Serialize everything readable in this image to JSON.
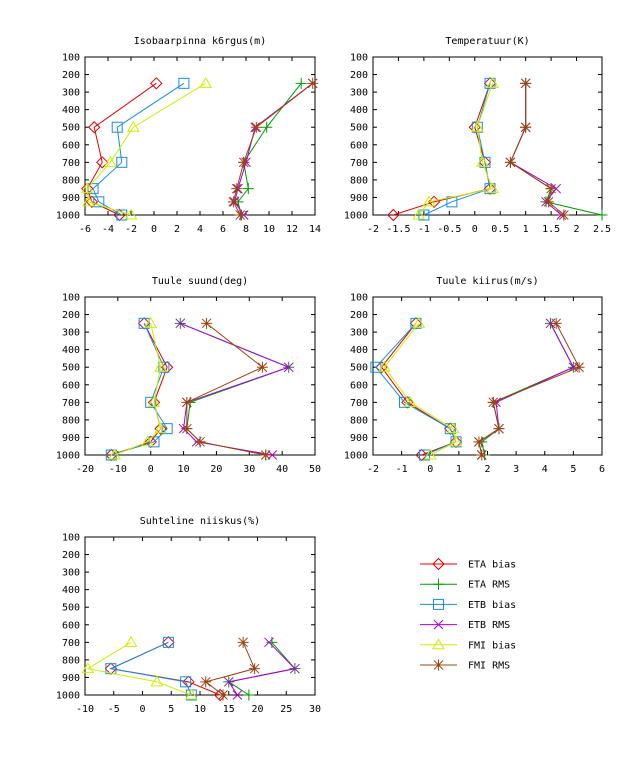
{
  "legend": {
    "placement": "bottom-right",
    "entries": [
      {
        "name": "ETA bias",
        "color": "#dd0000",
        "marker": "diamond"
      },
      {
        "name": "ETA RMS",
        "color": "#009900",
        "marker": "plus"
      },
      {
        "name": "ETB bias",
        "color": "#1a8ce0",
        "marker": "square"
      },
      {
        "name": "ETB RMS",
        "color": "#aa00dd",
        "marker": "cross"
      },
      {
        "name": "FMI bias",
        "color": "#ccee00",
        "marker": "triangle"
      },
      {
        "name": "FMI RMS",
        "color": "#994411",
        "marker": "star"
      }
    ]
  },
  "chart_data": [
    {
      "type": "line",
      "title": "Isobaarpinna k6rgus(m)",
      "y_reversed": true,
      "ylim": [
        100,
        1000
      ],
      "yticks": [
        100,
        200,
        300,
        400,
        500,
        600,
        700,
        800,
        900,
        1000
      ],
      "xlim": [
        -6,
        14
      ],
      "xticks": [
        -6,
        -4,
        -2,
        0,
        2,
        4,
        6,
        8,
        10,
        12,
        14
      ],
      "levels": [
        250,
        500,
        700,
        850,
        925,
        1000
      ],
      "series": [
        {
          "name": "ETA bias",
          "values": [
            0.2,
            -5.2,
            -4.5,
            -5.8,
            -5.4,
            -3.0
          ]
        },
        {
          "name": "ETA RMS",
          "values": [
            12.8,
            9.8,
            7.8,
            8.2,
            7.3,
            7.6
          ]
        },
        {
          "name": "ETB bias",
          "values": [
            2.6,
            -3.2,
            -2.8,
            -5.3,
            -4.8,
            -2.8
          ]
        },
        {
          "name": "ETB RMS",
          "values": [
            13.8,
            8.8,
            8.0,
            7.3,
            7.0,
            7.8
          ]
        },
        {
          "name": "FMI bias",
          "values": [
            4.5,
            -1.8,
            -3.8,
            -5.8,
            -5.7,
            -2.0
          ]
        },
        {
          "name": "FMI RMS",
          "values": [
            13.8,
            8.9,
            7.8,
            7.2,
            6.9,
            7.5
          ]
        }
      ]
    },
    {
      "type": "line",
      "title": "Temperatuur(K)",
      "y_reversed": true,
      "ylim": [
        100,
        1000
      ],
      "yticks": [
        100,
        200,
        300,
        400,
        500,
        600,
        700,
        800,
        900,
        1000
      ],
      "xlim": [
        -2,
        2.5
      ],
      "xticks": [
        "-2",
        "-1.5",
        "-1",
        "-0.5",
        "0",
        "0.5",
        "1",
        "1.5",
        "2",
        "2.5"
      ],
      "levels": [
        250,
        500,
        700,
        850,
        925,
        1000
      ],
      "series": [
        {
          "name": "ETA bias",
          "values": [
            0.3,
            0.0,
            0.2,
            0.3,
            -0.8,
            -1.6
          ]
        },
        {
          "name": "ETA RMS",
          "values": [
            1.0,
            1.0,
            0.7,
            1.5,
            1.4,
            2.5
          ]
        },
        {
          "name": "ETB bias",
          "values": [
            0.3,
            0.05,
            0.2,
            0.3,
            -0.45,
            -1.0
          ]
        },
        {
          "name": "ETB RMS",
          "values": [
            1.0,
            1.0,
            0.7,
            1.6,
            1.4,
            1.7
          ]
        },
        {
          "name": "FMI bias",
          "values": [
            0.35,
            0.05,
            0.15,
            0.35,
            -0.9,
            -1.1
          ]
        },
        {
          "name": "FMI RMS",
          "values": [
            1.0,
            1.0,
            0.7,
            1.5,
            1.45,
            1.75
          ]
        }
      ]
    },
    {
      "type": "line",
      "title": "Tuule suund(deg)",
      "y_reversed": true,
      "ylim": [
        100,
        1000
      ],
      "yticks": [
        100,
        200,
        300,
        400,
        500,
        600,
        700,
        800,
        900,
        1000
      ],
      "xlim": [
        -20,
        50
      ],
      "xticks": [
        -20,
        -10,
        0,
        10,
        20,
        30,
        40,
        50
      ],
      "levels": [
        250,
        500,
        700,
        850,
        925,
        1000
      ],
      "series": [
        {
          "name": "ETA bias",
          "values": [
            -2,
            5,
            1,
            3,
            0,
            -12
          ]
        },
        {
          "name": "ETA RMS",
          "values": [
            9,
            42,
            12,
            11,
            15,
            35
          ]
        },
        {
          "name": "ETB bias",
          "values": [
            -2,
            4,
            0,
            5,
            1,
            -12
          ]
        },
        {
          "name": "ETB RMS",
          "values": [
            9,
            42,
            11,
            10,
            14,
            37
          ]
        },
        {
          "name": "FMI bias",
          "values": [
            0,
            3,
            1,
            3,
            -1,
            -11
          ]
        },
        {
          "name": "FMI RMS",
          "values": [
            17,
            34,
            11,
            11,
            15,
            35
          ]
        }
      ]
    },
    {
      "type": "line",
      "title": "Tuule kiirus(m/s)",
      "y_reversed": true,
      "ylim": [
        100,
        1000
      ],
      "yticks": [
        100,
        200,
        300,
        400,
        500,
        600,
        700,
        800,
        900,
        1000
      ],
      "xlim": [
        -2,
        6
      ],
      "xticks": [
        -2,
        -1,
        0,
        1,
        2,
        3,
        4,
        5,
        6
      ],
      "levels": [
        250,
        500,
        700,
        850,
        925,
        1000
      ],
      "series": [
        {
          "name": "ETA bias",
          "values": [
            -0.5,
            -1.7,
            -0.8,
            0.7,
            0.9,
            -0.3
          ]
        },
        {
          "name": "ETA RMS",
          "values": [
            4.2,
            5.0,
            2.2,
            2.4,
            1.8,
            1.9
          ]
        },
        {
          "name": "ETB bias",
          "values": [
            -0.5,
            -1.9,
            -0.9,
            0.7,
            0.9,
            -0.2
          ]
        },
        {
          "name": "ETB RMS",
          "values": [
            4.2,
            5.0,
            2.3,
            2.4,
            1.7,
            1.8
          ]
        },
        {
          "name": "FMI bias",
          "values": [
            -0.4,
            -1.6,
            -0.7,
            0.8,
            0.9,
            0.0
          ]
        },
        {
          "name": "FMI RMS",
          "values": [
            4.4,
            5.2,
            2.2,
            2.4,
            1.7,
            1.8
          ]
        }
      ]
    },
    {
      "type": "line",
      "title": "Suhteline niiskus(%)",
      "y_reversed": true,
      "ylim": [
        100,
        1000
      ],
      "yticks": [
        100,
        200,
        300,
        400,
        500,
        600,
        700,
        800,
        900,
        1000
      ],
      "xlim": [
        -10,
        30
      ],
      "xticks": [
        -10,
        -5,
        0,
        5,
        10,
        15,
        20,
        25,
        30
      ],
      "levels": [
        700,
        850,
        925,
        1000
      ],
      "series": [
        {
          "name": "ETA bias",
          "values": [
            4.5,
            -5.5,
            8,
            13.5
          ]
        },
        {
          "name": "ETA RMS",
          "values": [
            22.5,
            26.5,
            15,
            18.5
          ]
        },
        {
          "name": "ETB bias",
          "values": [
            4.5,
            -5.5,
            7.5,
            8.5
          ]
        },
        {
          "name": "ETB RMS",
          "values": [
            22,
            26.5,
            15,
            16.5
          ]
        },
        {
          "name": "FMI bias",
          "values": [
            -2,
            -9.5,
            2.5,
            8.5
          ]
        },
        {
          "name": "FMI RMS",
          "values": [
            17.5,
            19.5,
            11,
            14
          ]
        }
      ]
    }
  ]
}
